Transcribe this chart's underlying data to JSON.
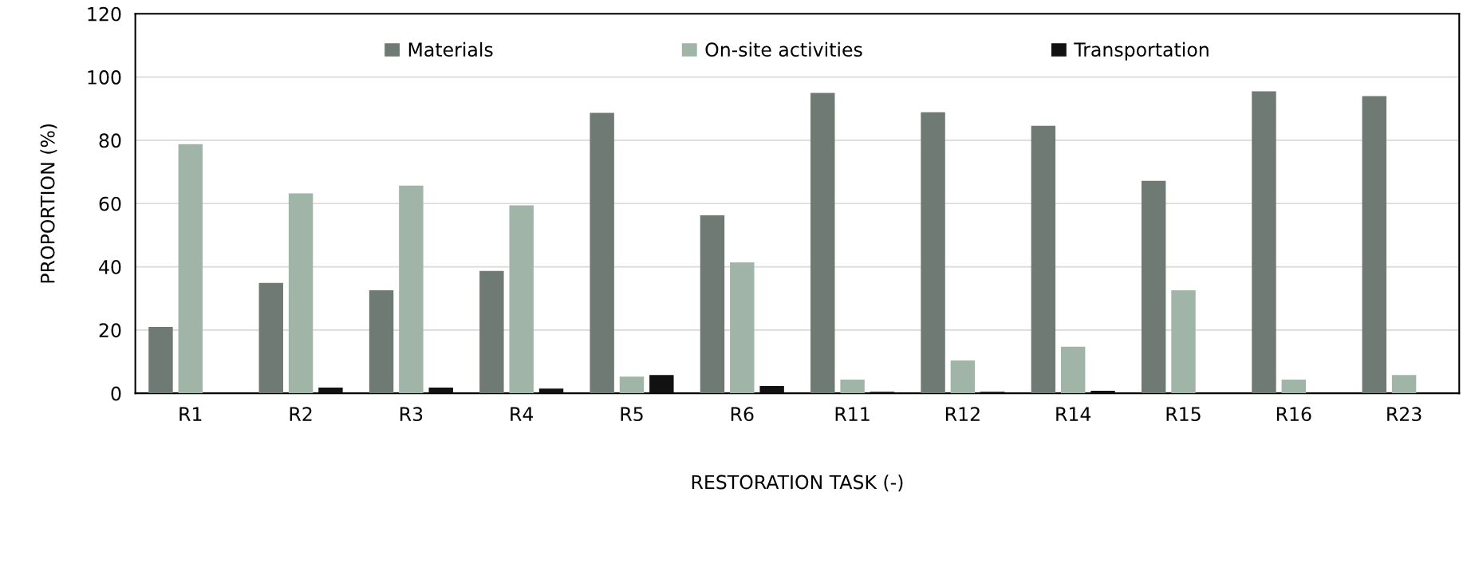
{
  "chart_data": {
    "type": "bar",
    "xlabel": "RESTORATION TASK (-)",
    "ylabel": "PROPORTION (%)",
    "categories": [
      "R1",
      "R2",
      "R3",
      "R4",
      "R5",
      "R6",
      "R11",
      "R12",
      "R14",
      "R15",
      "R16",
      "R23"
    ],
    "series": [
      {
        "name": "Materials",
        "color": "#707a74",
        "values": [
          21.0,
          34.9,
          32.6,
          38.7,
          88.7,
          56.3,
          95.0,
          88.9,
          84.6,
          67.2,
          95.5,
          94.0
        ]
      },
      {
        "name": "On-site activities",
        "color": "#a0b4a8",
        "values": [
          78.8,
          63.2,
          65.7,
          59.4,
          5.3,
          41.4,
          4.3,
          10.4,
          14.7,
          32.6,
          4.3,
          5.8
        ]
      },
      {
        "name": "Transportation",
        "color": "#111111",
        "values": [
          0,
          1.8,
          1.8,
          1.5,
          5.8,
          2.3,
          0.5,
          0.5,
          0.8,
          0,
          0,
          0
        ]
      }
    ],
    "ylim": [
      0,
      120
    ],
    "yticks": [
      0,
      20,
      40,
      60,
      80,
      100,
      120
    ],
    "grid": "y",
    "legend": "top"
  }
}
